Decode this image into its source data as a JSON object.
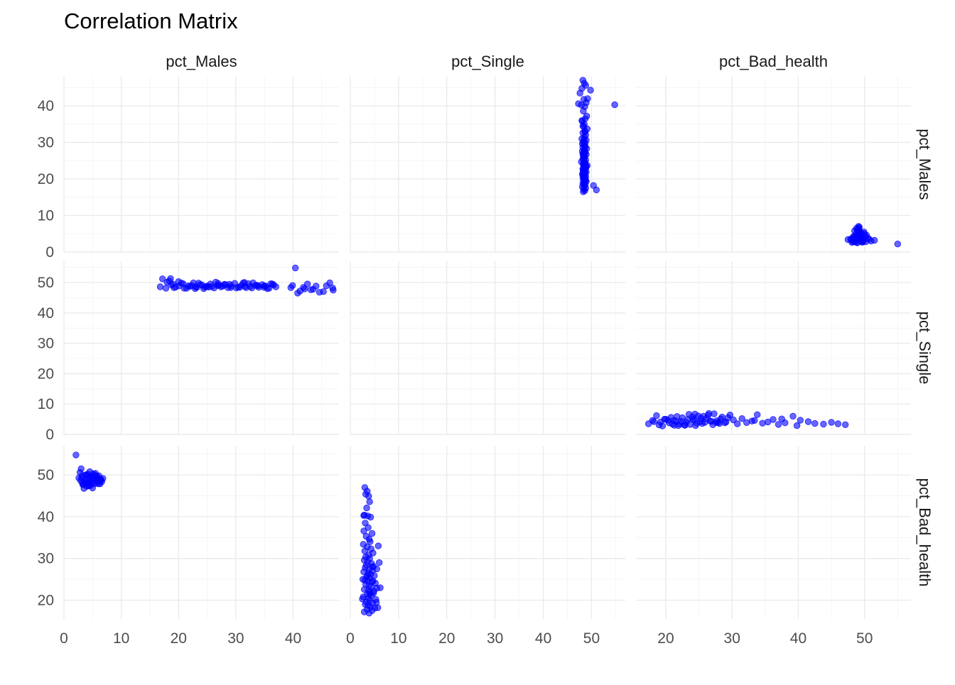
{
  "chart_data": {
    "type": "scatter",
    "title": "Correlation Matrix",
    "variables": [
      "pct_Males",
      "pct_Single",
      "pct_Bad_health"
    ],
    "point_color": "#0000FF",
    "point_alpha": 0.6,
    "grid": true,
    "x_axes": [
      {
        "range": [
          0,
          48
        ],
        "ticks": [
          0,
          10,
          20,
          30,
          40
        ]
      },
      {
        "range": [
          0,
          57
        ],
        "ticks": [
          0,
          10,
          20,
          30,
          40,
          50
        ]
      },
      {
        "range": [
          15.5,
          57
        ],
        "ticks": [
          20,
          30,
          40,
          50
        ]
      }
    ],
    "y_axes": [
      {
        "range": [
          0,
          48
        ],
        "ticks": [
          0,
          10,
          20,
          30,
          40
        ]
      },
      {
        "range": [
          0,
          57
        ],
        "ticks": [
          0,
          10,
          20,
          30,
          40,
          50
        ]
      },
      {
        "range": [
          15.5,
          57
        ],
        "ticks": [
          20,
          30,
          40,
          50
        ]
      }
    ],
    "panels": [
      {
        "row": 0,
        "col": 1,
        "x": [
          48.2,
          48.5,
          48.8,
          48.0,
          47.6,
          49.2,
          48.4,
          48.9,
          47.9,
          48.6,
          48.3,
          49.0,
          48.7,
          48.1,
          48.5,
          48.4,
          49.1,
          48.6,
          48.2,
          48.8,
          48.5,
          48.0,
          48.9,
          48.3,
          48.7,
          48.4,
          48.6,
          48.2,
          49.0,
          48.5,
          48.1,
          48.7,
          48.4,
          48.9,
          48.3,
          48.6,
          48.5,
          48.2,
          48.8,
          48.4,
          47.9,
          48.7,
          48.6,
          48.3,
          49.1,
          48.5,
          48.4,
          48.8,
          48.2,
          48.6,
          48.5,
          48.3,
          48.9,
          48.7,
          48.4,
          48.1,
          48.6,
          48.5,
          48.8,
          48.2,
          48.4,
          48.7,
          48.5,
          48.3,
          48.6,
          48.9,
          48.4,
          48.2,
          48.7,
          48.5,
          48.1,
          48.8,
          48.4,
          48.6,
          48.3,
          48.5,
          48.7,
          48.2,
          48.9,
          48.4,
          48.6,
          48.5,
          48.3,
          48.8,
          48.4,
          48.1,
          48.7,
          48.5,
          48.6,
          48.2,
          54.8,
          49.8,
          47.3,
          50.4,
          51.0,
          48.3,
          48.2,
          48.0,
          48.6,
          48.8
        ],
        "y": [
          47.0,
          46.2,
          45.6,
          44.8,
          43.5,
          42.0,
          41.8,
          40.9,
          40.2,
          39.8,
          38.6,
          37.2,
          36.5,
          35.8,
          35.0,
          34.3,
          33.7,
          33.1,
          32.6,
          32.0,
          31.5,
          31.0,
          30.6,
          30.2,
          29.8,
          29.4,
          29.0,
          28.6,
          28.3,
          28.0,
          27.6,
          27.3,
          27.0,
          26.7,
          26.4,
          26.1,
          25.8,
          25.5,
          25.2,
          24.9,
          24.7,
          24.4,
          24.2,
          23.9,
          23.7,
          23.4,
          23.2,
          22.9,
          22.7,
          22.5,
          22.3,
          22.1,
          21.9,
          21.7,
          21.5,
          21.3,
          21.1,
          20.9,
          20.7,
          20.5,
          20.3,
          20.1,
          19.9,
          19.7,
          19.5,
          19.3,
          19.0,
          18.7,
          18.4,
          18.1,
          17.8,
          17.5,
          17.2,
          16.8,
          24.0,
          26.5,
          28.8,
          21.6,
          23.3,
          25.9,
          27.7,
          30.8,
          22.8,
          19.6,
          20.8,
          29.6,
          32.9,
          18.9,
          24.6,
          26.9,
          40.3,
          44.3,
          40.6,
          18.2,
          17.0,
          16.5,
          34.5,
          36.0,
          27.2,
          23.6
        ]
      },
      {
        "row": 0,
        "col": 2,
        "x": [
          48.1,
          48.7,
          49.2,
          49.5,
          48.9,
          49.8,
          48.4,
          49.0,
          49.3,
          48.6,
          50.1,
          49.7,
          48.8,
          49.4,
          47.9,
          50.3,
          49.1,
          48.5,
          49.6,
          48.3,
          50.0,
          49.2,
          48.9,
          49.5,
          48.7,
          51.0,
          47.5,
          49.9,
          48.2,
          49.4,
          50.5,
          48.8,
          49.1,
          49.7,
          48.6,
          49.3,
          48.0,
          50.2,
          49.0,
          48.4,
          51.5,
          49.6,
          48.9,
          49.2,
          50.7,
          48.5,
          49.8,
          49.4,
          48.7,
          49.1,
          55.0
        ],
        "y": [
          2.6,
          3.1,
          4.4,
          5.2,
          6.0,
          3.6,
          2.9,
          4.8,
          5.6,
          3.3,
          4.1,
          2.7,
          6.5,
          3.9,
          3.5,
          4.6,
          5.9,
          2.8,
          3.2,
          4.2,
          5.0,
          6.8,
          2.5,
          3.7,
          4.9,
          3.0,
          3.4,
          5.5,
          2.9,
          4.5,
          3.8,
          2.6,
          7.0,
          3.1,
          4.0,
          5.3,
          3.6,
          2.8,
          6.2,
          4.3,
          3.2,
          2.7,
          3.9,
          4.7,
          3.5,
          5.8,
          2.9,
          3.3,
          4.1,
          6.4,
          2.2
        ]
      },
      {
        "row": 1,
        "col": 0,
        "x": [
          17.2,
          18.0,
          18.8,
          19.5,
          20.1,
          20.8,
          21.4,
          22.0,
          22.6,
          23.2,
          23.8,
          24.4,
          25.0,
          25.6,
          26.2,
          26.8,
          27.4,
          28.0,
          28.6,
          29.2,
          29.8,
          30.4,
          31.0,
          31.6,
          32.2,
          32.8,
          33.4,
          34.0,
          34.6,
          35.2,
          35.8,
          36.4,
          37.0,
          18.4,
          19.2,
          20.5,
          21.7,
          22.9,
          24.1,
          25.3,
          26.5,
          27.7,
          28.9,
          30.1,
          31.3,
          32.5,
          33.7,
          34.9,
          36.1,
          17.8,
          20.0,
          22.3,
          24.6,
          26.9,
          29.1,
          31.5,
          33.9,
          36.6,
          16.8,
          19.0,
          21.0,
          23.5,
          25.8,
          28.2,
          30.7,
          33.0,
          35.5,
          40.4,
          41.2,
          42.5,
          43.5,
          44.6,
          45.8,
          47.0,
          39.6,
          40.8,
          42.0,
          44.0,
          45.3,
          46.4,
          41.8,
          43.1,
          39.9,
          46.9,
          23.0,
          27.0,
          31.8,
          35.0,
          18.6,
          24.9
        ],
        "y": [
          51.2,
          50.1,
          49.2,
          48.5,
          48.9,
          49.6,
          48.1,
          48.7,
          49.9,
          48.4,
          49.3,
          48.0,
          48.8,
          49.5,
          48.2,
          49.0,
          48.6,
          49.4,
          48.3,
          48.9,
          49.7,
          48.5,
          49.1,
          48.7,
          49.6,
          48.2,
          49.0,
          48.4,
          49.3,
          48.8,
          48.1,
          49.5,
          48.6,
          50.5,
          48.3,
          49.8,
          48.9,
          48.0,
          49.2,
          48.5,
          50.1,
          48.8,
          49.4,
          48.2,
          49.9,
          48.7,
          49.1,
          48.4,
          49.6,
          48.1,
          50.3,
          49.0,
          48.5,
          49.7,
          48.3,
          50.0,
          48.9,
          49.2,
          48.6,
          49.5,
          48.1,
          49.8,
          48.7,
          49.3,
          48.4,
          49.9,
          48.0,
          54.8,
          47.2,
          49.5,
          47.8,
          46.8,
          48.9,
          47.5,
          48.3,
          46.5,
          47.9,
          48.8,
          47.0,
          49.9,
          48.4,
          47.6,
          49.0,
          48.2,
          48.6,
          49.1,
          48.3,
          48.9,
          51.3,
          48.7
        ]
      },
      {
        "row": 1,
        "col": 2,
        "x": [
          17.4,
          18.2,
          19.0,
          19.8,
          20.5,
          21.2,
          21.9,
          22.5,
          23.1,
          23.7,
          24.3,
          24.9,
          25.5,
          26.1,
          26.7,
          27.3,
          27.9,
          28.5,
          29.1,
          29.7,
          18.6,
          19.5,
          20.3,
          21.0,
          21.7,
          22.3,
          22.9,
          23.5,
          24.1,
          24.7,
          25.3,
          25.9,
          26.5,
          27.1,
          27.7,
          28.3,
          28.9,
          19.2,
          20.8,
          22.1,
          23.3,
          24.5,
          25.7,
          26.9,
          28.1,
          20.0,
          21.5,
          22.8,
          24.0,
          25.2,
          26.4,
          27.6,
          18.0,
          30.2,
          30.8,
          31.5,
          32.2,
          33.0,
          33.8,
          34.6,
          35.4,
          36.2,
          37.0,
          38.0,
          39.2,
          39.8,
          40.3,
          41.5,
          42.5,
          43.8,
          45.0,
          46.0,
          47.1,
          37.5,
          33.4,
          29.4,
          24.4,
          21.3
        ],
        "y": [
          3.5,
          4.2,
          3.1,
          5.0,
          3.8,
          4.6,
          2.9,
          5.5,
          4.0,
          3.3,
          4.8,
          6.1,
          3.6,
          5.2,
          4.4,
          6.8,
          3.9,
          5.7,
          4.1,
          6.4,
          6.2,
          2.8,
          4.7,
          3.4,
          5.9,
          4.3,
          3.0,
          6.6,
          4.9,
          3.7,
          5.4,
          4.0,
          6.9,
          3.2,
          4.5,
          5.1,
          3.8,
          4.1,
          5.6,
          3.5,
          4.9,
          2.9,
          6.0,
          4.3,
          3.6,
          5.0,
          4.4,
          3.1,
          5.8,
          4.2,
          6.3,
          3.9,
          4.6,
          4.8,
          3.5,
          5.2,
          3.9,
          4.4,
          6.5,
          3.7,
          4.1,
          4.9,
          3.3,
          3.8,
          6.0,
          2.9,
          4.7,
          4.2,
          3.6,
          3.4,
          4.0,
          3.5,
          3.2,
          5.1,
          4.6,
          5.5,
          6.7,
          3.0
        ]
      },
      {
        "row": 2,
        "col": 0,
        "x": [
          2.1,
          2.6,
          2.9,
          3.2,
          3.4,
          3.7,
          3.9,
          4.1,
          4.3,
          4.5,
          4.7,
          4.9,
          5.1,
          5.3,
          5.5,
          5.7,
          5.9,
          6.1,
          6.3,
          6.5,
          2.8,
          3.1,
          3.3,
          3.6,
          3.8,
          4.0,
          4.2,
          4.4,
          4.6,
          4.8,
          5.0,
          5.2,
          5.4,
          5.6,
          5.8,
          6.0,
          6.2,
          6.4,
          6.6,
          6.8,
          3.0,
          3.5,
          4.0,
          4.5,
          5.0,
          5.5,
          6.0,
          3.2,
          4.3,
          5.8
        ],
        "y": [
          54.8,
          49.3,
          48.7,
          49.9,
          47.8,
          48.4,
          50.1,
          49.0,
          48.2,
          49.6,
          47.5,
          48.9,
          50.3,
          49.2,
          48.0,
          49.5,
          48.6,
          49.8,
          47.9,
          48.8,
          50.6,
          49.4,
          47.7,
          48.5,
          49.9,
          48.1,
          50.2,
          47.6,
          49.1,
          48.3,
          49.7,
          48.0,
          50.0,
          48.7,
          49.3,
          47.9,
          48.5,
          49.0,
          48.4,
          49.2,
          51.5,
          46.8,
          47.3,
          50.8,
          46.9,
          50.4,
          48.9,
          48.1,
          47.4,
          49.6
        ]
      },
      {
        "row": 2,
        "col": 1,
        "x": [
          3.0,
          3.5,
          3.2,
          3.8,
          4.0,
          3.4,
          2.9,
          3.6,
          4.2,
          3.1,
          3.7,
          2.8,
          4.5,
          3.3,
          3.9,
          4.1,
          2.7,
          3.5,
          4.3,
          3.0,
          4.7,
          3.8,
          3.2,
          4.0,
          2.9,
          3.6,
          4.4,
          3.3,
          4.8,
          3.1,
          3.9,
          4.6,
          2.8,
          3.7,
          4.2,
          5.0,
          3.4,
          4.0,
          2.6,
          3.6,
          4.5,
          5.2,
          3.2,
          3.9,
          4.3,
          5.5,
          2.9,
          3.7,
          4.1,
          4.8,
          3.5,
          4.4,
          2.7,
          3.8,
          5.3,
          4.0,
          3.3,
          4.6,
          3.1,
          3.7,
          4.2,
          5.1,
          3.5,
          4.5,
          2.9,
          3.9,
          4.7,
          5.8,
          6.0,
          5.5,
          6.2,
          3.6,
          4.9,
          5.7,
          2.5,
          4.0,
          3.0,
          4.6,
          5.4,
          2.8
        ],
        "y": [
          47.0,
          46.1,
          45.4,
          44.9,
          43.6,
          42.1,
          40.4,
          40.2,
          39.9,
          38.5,
          37.4,
          36.6,
          36.0,
          35.3,
          34.6,
          34.0,
          33.4,
          32.8,
          32.3,
          31.8,
          31.3,
          30.8,
          30.4,
          30.0,
          29.6,
          29.2,
          28.8,
          28.4,
          28.1,
          27.8,
          27.4,
          27.1,
          26.8,
          26.5,
          26.2,
          25.9,
          25.6,
          25.3,
          25.0,
          24.7,
          24.4,
          24.1,
          23.8,
          23.5,
          23.2,
          22.9,
          22.6,
          22.3,
          22.0,
          21.7,
          21.4,
          21.1,
          20.8,
          20.5,
          20.2,
          19.9,
          19.6,
          19.3,
          19.0,
          18.7,
          18.4,
          18.1,
          17.8,
          17.5,
          17.2,
          16.9,
          24.6,
          33.0,
          29.0,
          27.5,
          23.0,
          26.0,
          22.2,
          18.2,
          20.3,
          21.5,
          24.8,
          28.0,
          19.5,
          40.3
        ]
      }
    ]
  }
}
